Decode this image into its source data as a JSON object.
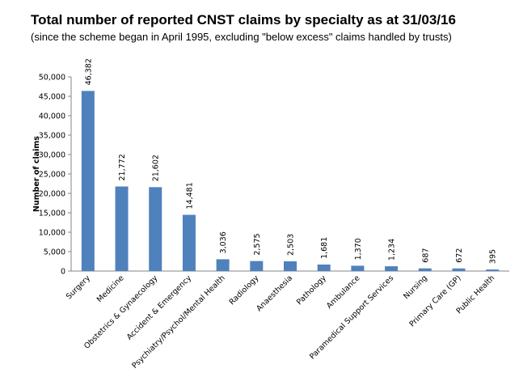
{
  "chart_data": {
    "type": "bar",
    "title": "Total number of reported CNST claims by specialty as at 31/03/16",
    "subtitle": "(since the scheme began in April 1995, excluding \"below excess\" claims handled by trusts)",
    "xlabel": "",
    "ylabel": "Number of claims",
    "ylim": [
      0,
      50000
    ],
    "yticks": [
      0,
      5000,
      10000,
      15000,
      20000,
      25000,
      30000,
      35000,
      40000,
      45000,
      50000
    ],
    "ytick_labels": [
      "0",
      "5,000",
      "10,000",
      "15,000",
      "20,000",
      "25,000",
      "30,000",
      "35,000",
      "40,000",
      "45,000",
      "50,000"
    ],
    "grid": false,
    "bar_color": "#4f81bd",
    "categories": [
      "Surgery",
      "Medicine",
      "Obstetrics & Gynaecology",
      "Accident & Emergency",
      "Psychiatry/Psychol/Mental Health",
      "Radiology",
      "Anaesthesia",
      "Pathology",
      "Ambulance",
      "Paramedical Support Services",
      "Nursing",
      "Primary Care (GP)",
      "Public Health"
    ],
    "values": [
      46382,
      21772,
      21602,
      14481,
      3036,
      2575,
      2503,
      1681,
      1370,
      1234,
      687,
      672,
      395
    ],
    "data_labels": [
      "46,382",
      "21,772",
      "21,602",
      "14,481",
      "3,036",
      "2,575",
      "2,503",
      "1,681",
      "1,370",
      "1,234",
      "687",
      "672",
      "395"
    ]
  }
}
